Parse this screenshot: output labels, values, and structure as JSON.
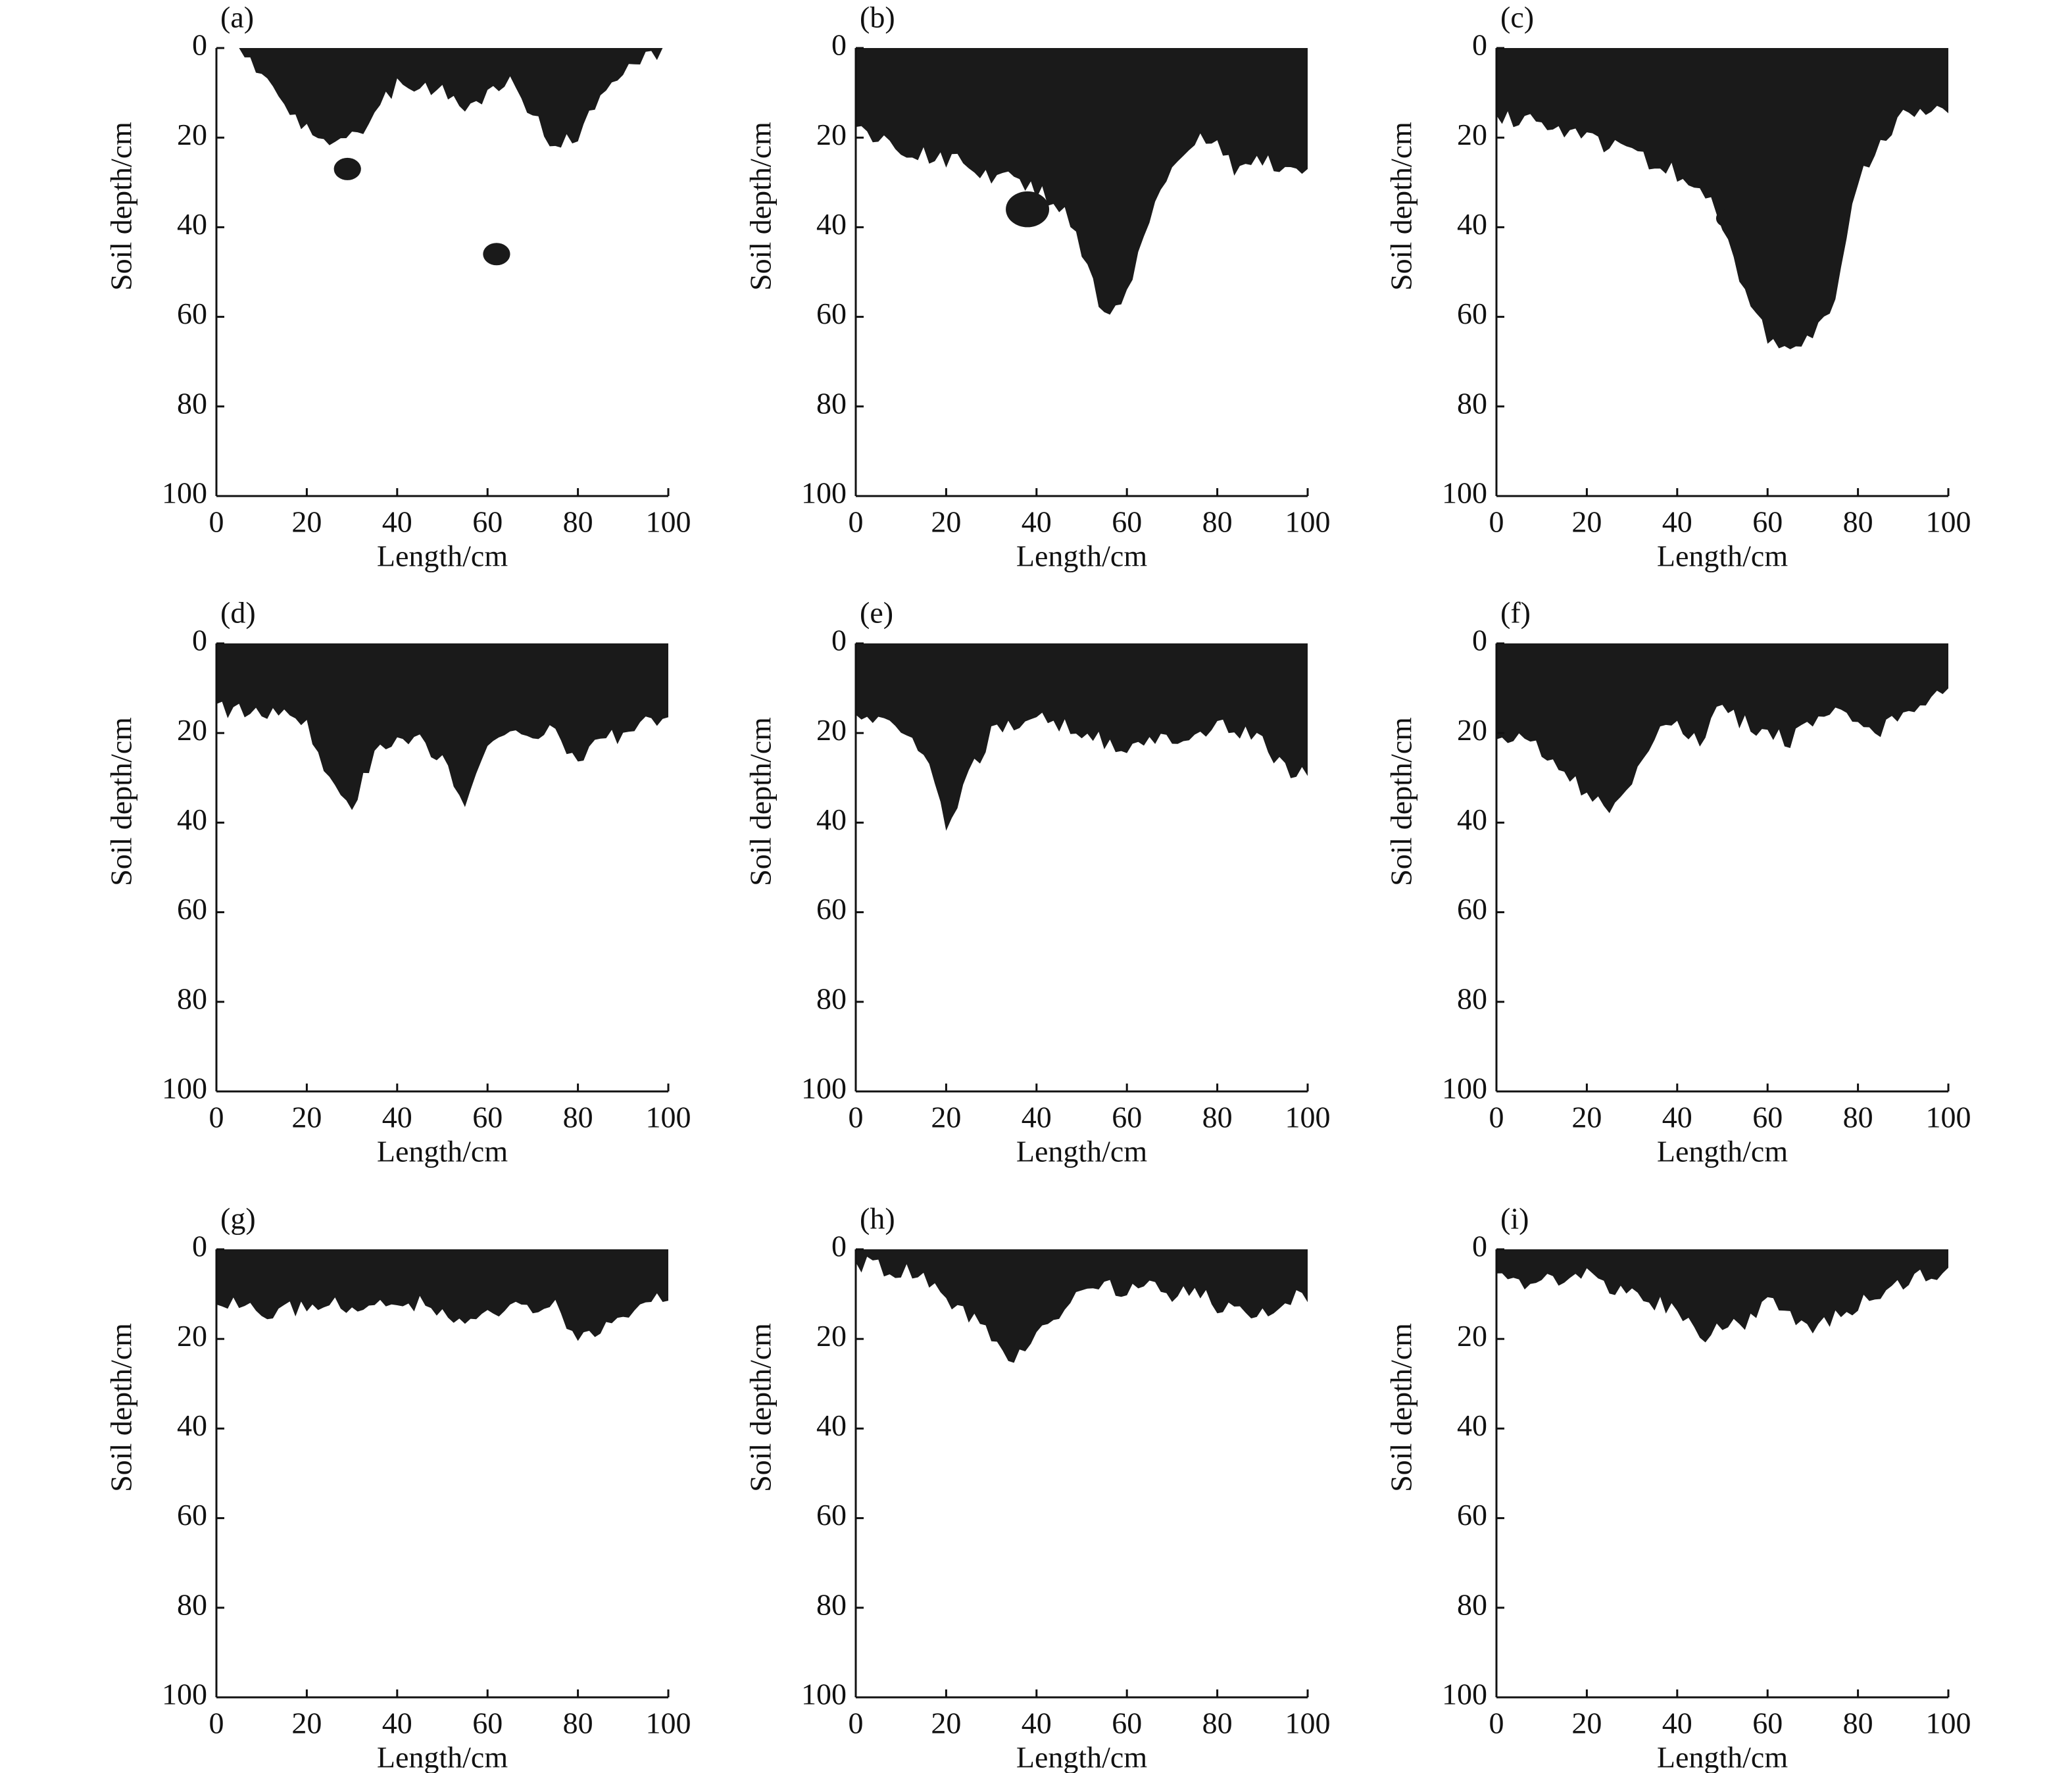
{
  "chart_data": [
    {
      "type": "image",
      "label": "(a)",
      "xlabel": "Length/cm",
      "ylabel": "Soil depth/cm",
      "xlim": [
        0,
        100
      ],
      "ylim": [
        0,
        100
      ],
      "y_inverted": true,
      "xticks": [
        0,
        20,
        40,
        60,
        80,
        100
      ],
      "yticks": [
        0,
        20,
        40,
        60,
        80,
        100
      ]
    },
    {
      "type": "image",
      "label": "(b)",
      "xlabel": "Length/cm",
      "ylabel": "Soil depth/cm",
      "xlim": [
        0,
        100
      ],
      "ylim": [
        0,
        100
      ],
      "y_inverted": true,
      "xticks": [
        0,
        20,
        40,
        60,
        80,
        100
      ],
      "yticks": [
        0,
        20,
        40,
        60,
        80,
        100
      ]
    },
    {
      "type": "image",
      "label": "(c)",
      "xlabel": "Length/cm",
      "ylabel": "Soil depth/cm",
      "xlim": [
        0,
        100
      ],
      "ylim": [
        0,
        100
      ],
      "y_inverted": true,
      "xticks": [
        0,
        20,
        40,
        60,
        80,
        100
      ],
      "yticks": [
        0,
        20,
        40,
        60,
        80,
        100
      ]
    },
    {
      "type": "image",
      "label": "(d)",
      "xlabel": "Length/cm",
      "ylabel": "Soil depth/cm",
      "xlim": [
        0,
        100
      ],
      "ylim": [
        0,
        100
      ],
      "y_inverted": true,
      "xticks": [
        0,
        20,
        40,
        60,
        80,
        100
      ],
      "yticks": [
        0,
        20,
        40,
        60,
        80,
        100
      ]
    },
    {
      "type": "image",
      "label": "(e)",
      "xlabel": "Length/cm",
      "ylabel": "Soil depth/cm",
      "xlim": [
        0,
        100
      ],
      "ylim": [
        0,
        100
      ],
      "y_inverted": true,
      "xticks": [
        0,
        20,
        40,
        60,
        80,
        100
      ],
      "yticks": [
        0,
        20,
        40,
        60,
        80,
        100
      ]
    },
    {
      "type": "image",
      "label": "(f)",
      "xlabel": "Length/cm",
      "ylabel": "Soil depth/cm",
      "xlim": [
        0,
        100
      ],
      "ylim": [
        0,
        100
      ],
      "y_inverted": true,
      "xticks": [
        0,
        20,
        40,
        60,
        80,
        100
      ],
      "yticks": [
        0,
        20,
        40,
        60,
        80,
        100
      ]
    },
    {
      "type": "image",
      "label": "(g)",
      "xlabel": "Length/cm",
      "ylabel": "Soil depth/cm",
      "xlim": [
        0,
        100
      ],
      "ylim": [
        0,
        100
      ],
      "y_inverted": true,
      "xticks": [
        0,
        20,
        40,
        60,
        80,
        100
      ],
      "yticks": [
        0,
        20,
        40,
        60,
        80,
        100
      ]
    },
    {
      "type": "image",
      "label": "(h)",
      "xlabel": "Length/cm",
      "ylabel": "Soil depth/cm",
      "xlim": [
        0,
        100
      ],
      "ylim": [
        0,
        100
      ],
      "y_inverted": true,
      "xticks": [
        0,
        20,
        40,
        60,
        80,
        100
      ],
      "yticks": [
        0,
        20,
        40,
        60,
        80,
        100
      ]
    },
    {
      "type": "image",
      "label": "(i)",
      "xlabel": "Length/cm",
      "ylabel": "Soil depth/cm",
      "xlim": [
        0,
        100
      ],
      "ylim": [
        0,
        100
      ],
      "y_inverted": true,
      "xticks": [
        0,
        20,
        40,
        60,
        80,
        100
      ],
      "yticks": [
        0,
        20,
        40,
        60,
        80,
        100
      ]
    }
  ]
}
